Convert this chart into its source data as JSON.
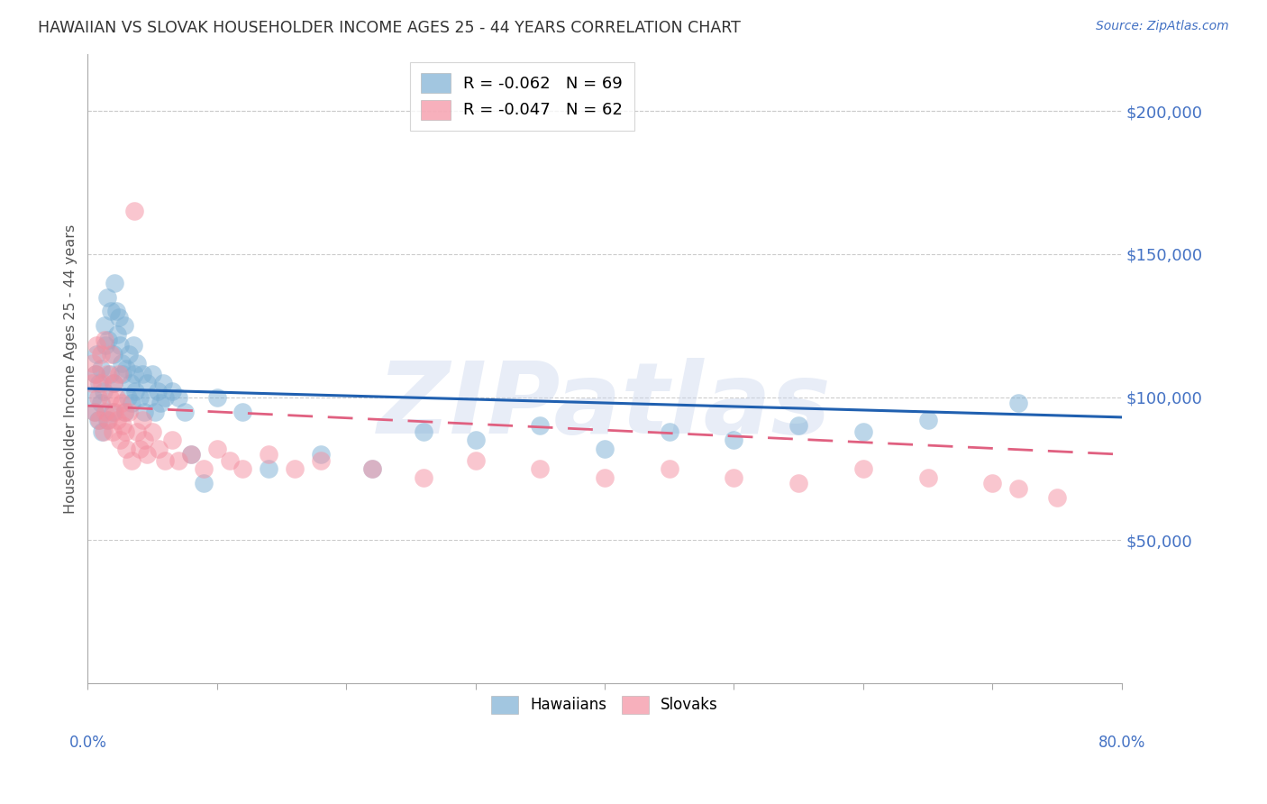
{
  "title": "HAWAIIAN VS SLOVAK HOUSEHOLDER INCOME AGES 25 - 44 YEARS CORRELATION CHART",
  "source": "Source: ZipAtlas.com",
  "ylabel": "Householder Income Ages 25 - 44 years",
  "watermark": "ZIPatlas",
  "legend_entries": [
    {
      "label": "R = -0.062   N = 69",
      "color": "#7bafd4"
    },
    {
      "label": "R = -0.047   N = 62",
      "color": "#f4a0b0"
    }
  ],
  "legend_names": [
    "Hawaiians",
    "Slovaks"
  ],
  "ylim": [
    0,
    220000
  ],
  "xlim": [
    0.0,
    0.8
  ],
  "hawaiian_color": "#7bafd4",
  "slovak_color": "#f48fa0",
  "trendline_hawaiian_color": "#2060b0",
  "trendline_slovak_color": "#e06080",
  "background_color": "#ffffff",
  "hawaiians_x": [
    0.004,
    0.005,
    0.006,
    0.007,
    0.008,
    0.009,
    0.01,
    0.01,
    0.011,
    0.012,
    0.013,
    0.014,
    0.015,
    0.015,
    0.016,
    0.017,
    0.018,
    0.019,
    0.02,
    0.02,
    0.021,
    0.022,
    0.023,
    0.024,
    0.025,
    0.026,
    0.027,
    0.028,
    0.029,
    0.03,
    0.031,
    0.032,
    0.033,
    0.034,
    0.035,
    0.036,
    0.037,
    0.038,
    0.04,
    0.042,
    0.044,
    0.046,
    0.048,
    0.05,
    0.052,
    0.054,
    0.056,
    0.058,
    0.06,
    0.065,
    0.07,
    0.075,
    0.08,
    0.09,
    0.1,
    0.12,
    0.14,
    0.18,
    0.22,
    0.26,
    0.3,
    0.35,
    0.4,
    0.45,
    0.5,
    0.55,
    0.6,
    0.65,
    0.72
  ],
  "hawaiians_y": [
    100000,
    95000,
    108000,
    115000,
    92000,
    105000,
    98000,
    110000,
    88000,
    102000,
    125000,
    118000,
    135000,
    92000,
    120000,
    108000,
    130000,
    95000,
    115000,
    105000,
    140000,
    130000,
    122000,
    128000,
    118000,
    112000,
    108000,
    125000,
    95000,
    110000,
    100000,
    115000,
    105000,
    98000,
    118000,
    108000,
    102000,
    112000,
    100000,
    108000,
    95000,
    105000,
    100000,
    108000,
    95000,
    102000,
    98000,
    105000,
    100000,
    102000,
    100000,
    95000,
    80000,
    70000,
    100000,
    95000,
    75000,
    80000,
    75000,
    88000,
    85000,
    90000,
    82000,
    88000,
    85000,
    90000,
    88000,
    92000,
    98000
  ],
  "slovaks_x": [
    0.003,
    0.004,
    0.005,
    0.006,
    0.007,
    0.008,
    0.009,
    0.01,
    0.011,
    0.012,
    0.013,
    0.014,
    0.015,
    0.016,
    0.017,
    0.018,
    0.019,
    0.02,
    0.021,
    0.022,
    0.023,
    0.024,
    0.025,
    0.026,
    0.027,
    0.028,
    0.029,
    0.03,
    0.032,
    0.034,
    0.036,
    0.038,
    0.04,
    0.042,
    0.044,
    0.046,
    0.05,
    0.055,
    0.06,
    0.065,
    0.07,
    0.08,
    0.09,
    0.1,
    0.11,
    0.12,
    0.14,
    0.16,
    0.18,
    0.22,
    0.26,
    0.3,
    0.35,
    0.4,
    0.45,
    0.5,
    0.55,
    0.6,
    0.65,
    0.7,
    0.72,
    0.75
  ],
  "slovaks_y": [
    105000,
    112000,
    95000,
    108000,
    118000,
    100000,
    92000,
    115000,
    105000,
    88000,
    120000,
    95000,
    108000,
    92000,
    100000,
    115000,
    88000,
    105000,
    95000,
    100000,
    92000,
    108000,
    85000,
    98000,
    90000,
    95000,
    88000,
    82000,
    95000,
    78000,
    165000,
    88000,
    82000,
    92000,
    85000,
    80000,
    88000,
    82000,
    78000,
    85000,
    78000,
    80000,
    75000,
    82000,
    78000,
    75000,
    80000,
    75000,
    78000,
    75000,
    72000,
    78000,
    75000,
    72000,
    75000,
    72000,
    70000,
    75000,
    72000,
    70000,
    68000,
    65000
  ],
  "trendline_h_x0": 0.0,
  "trendline_h_x1": 0.8,
  "trendline_h_y0": 103000,
  "trendline_h_y1": 93000,
  "trendline_s_x0": 0.0,
  "trendline_s_x1": 0.8,
  "trendline_s_y0": 97000,
  "trendline_s_y1": 80000
}
